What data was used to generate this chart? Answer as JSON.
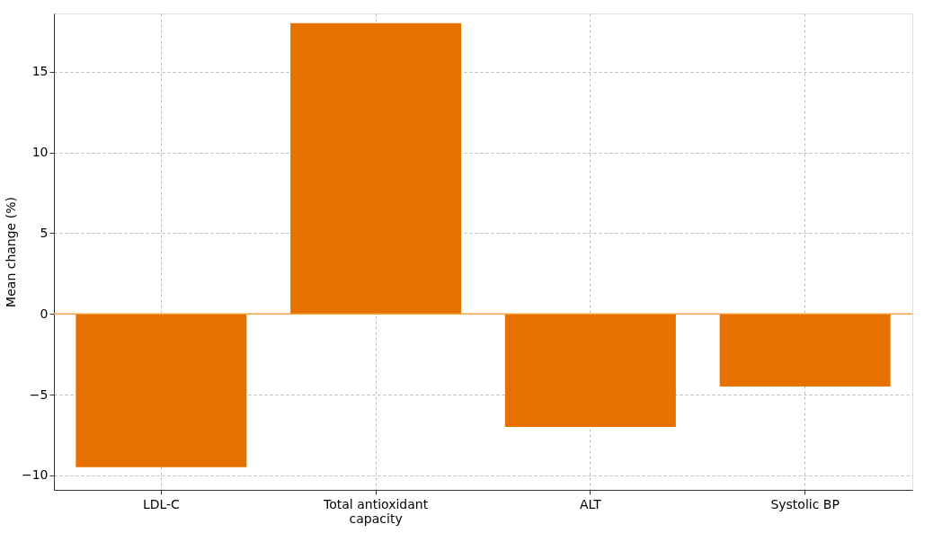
{
  "chart_data": {
    "type": "bar",
    "ylabel": "Mean change (%)",
    "categories": [
      "LDL-C",
      "Total antioxidant capacity",
      "ALT",
      "Systolic BP"
    ],
    "series": [
      {
        "color": "#e67000",
        "values": [
          -9.5,
          18,
          -7,
          -4.5
        ]
      }
    ],
    "ylim": [
      -10.9,
      18.6
    ],
    "yticks": [
      -10,
      -5,
      0,
      5,
      10,
      15
    ],
    "grid": true,
    "ref_lines": [
      {
        "axis": "y",
        "value": 0,
        "color": "#f5a040"
      }
    ]
  }
}
